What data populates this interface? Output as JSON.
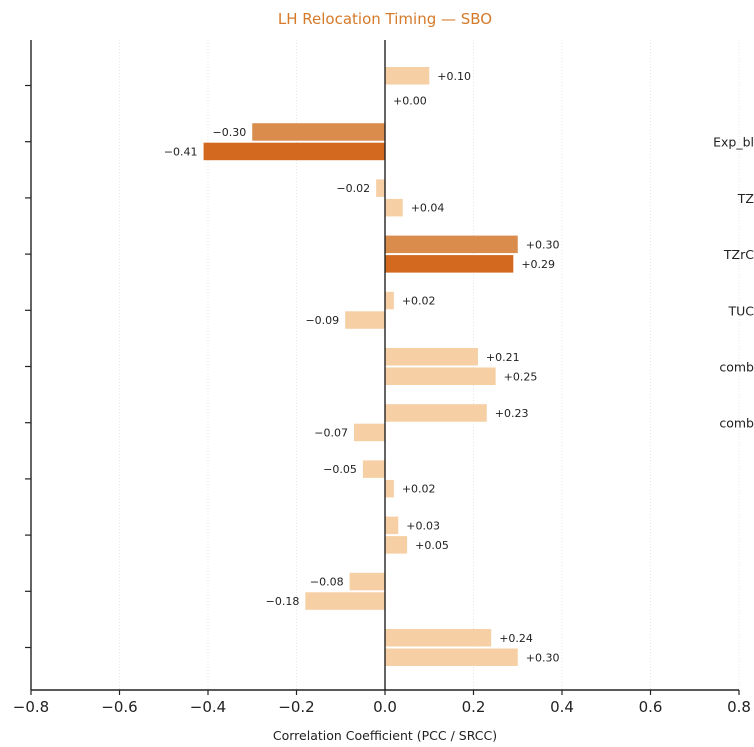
{
  "chart_data": {
    "type": "bar",
    "orientation": "horizontal",
    "title": "LH Relocation Timing — SBO",
    "xlabel": "Correlation Coefficient (PCC / SRCC)",
    "ylabel": "",
    "xlim": [
      -0.8,
      0.8
    ],
    "x_ticks": [
      -0.8,
      -0.6,
      -0.4,
      -0.2,
      0.0,
      0.2,
      0.4,
      0.6,
      0.8
    ],
    "x_tick_labels": [
      "−0.8",
      "−0.6",
      "−0.4",
      "−0.2",
      "0.0",
      "0.2",
      "0.4",
      "0.6",
      "0.8"
    ],
    "grid": "vertical, light dotted",
    "category_labels": [
      "",
      "Exp_bl",
      "TZ",
      "TZrC",
      "TUC",
      "comb",
      "comb",
      "",
      "",
      "",
      ""
    ],
    "groups": [
      {
        "bars": [
          {
            "value": 0.1,
            "label": "+0.10",
            "shade": "light"
          },
          {
            "value": 0.0,
            "label": "+0.00",
            "shade": "light"
          }
        ]
      },
      {
        "bars": [
          {
            "value": -0.3,
            "label": "−0.30",
            "shade": "medium"
          },
          {
            "value": -0.41,
            "label": "−0.41",
            "shade": "dark"
          }
        ]
      },
      {
        "bars": [
          {
            "value": -0.02,
            "label": "−0.02",
            "shade": "light"
          },
          {
            "value": 0.04,
            "label": "+0.04",
            "shade": "light"
          }
        ]
      },
      {
        "bars": [
          {
            "value": 0.3,
            "label": "+0.30",
            "shade": "medium"
          },
          {
            "value": 0.29,
            "label": "+0.29",
            "shade": "dark"
          }
        ]
      },
      {
        "bars": [
          {
            "value": 0.02,
            "label": "+0.02",
            "shade": "light"
          },
          {
            "value": -0.09,
            "label": "−0.09",
            "shade": "light"
          }
        ]
      },
      {
        "bars": [
          {
            "value": 0.21,
            "label": "+0.21",
            "shade": "light"
          },
          {
            "value": 0.25,
            "label": "+0.25",
            "shade": "light"
          }
        ]
      },
      {
        "bars": [
          {
            "value": 0.23,
            "label": "+0.23",
            "shade": "light"
          },
          {
            "value": -0.07,
            "label": "−0.07",
            "shade": "light"
          }
        ]
      },
      {
        "bars": [
          {
            "value": -0.05,
            "label": "−0.05",
            "shade": "light"
          },
          {
            "value": 0.02,
            "label": "+0.02",
            "shade": "light"
          }
        ]
      },
      {
        "bars": [
          {
            "value": 0.03,
            "label": "+0.03",
            "shade": "light"
          },
          {
            "value": 0.05,
            "label": "+0.05",
            "shade": "light"
          }
        ]
      },
      {
        "bars": [
          {
            "value": -0.08,
            "label": "−0.08",
            "shade": "light"
          },
          {
            "value": -0.18,
            "label": "−0.18",
            "shade": "light"
          }
        ]
      },
      {
        "bars": [
          {
            "value": 0.24,
            "label": "+0.24",
            "shade": "light"
          },
          {
            "value": 0.3,
            "label": "+0.30",
            "shade": "light"
          }
        ]
      }
    ],
    "colors": {
      "light": "#f6cfa4",
      "medium": "#d98c4c",
      "dark": "#d2691e",
      "title": "#d67a2a",
      "axis": "#222222",
      "grid": "#e6e6e6"
    }
  }
}
